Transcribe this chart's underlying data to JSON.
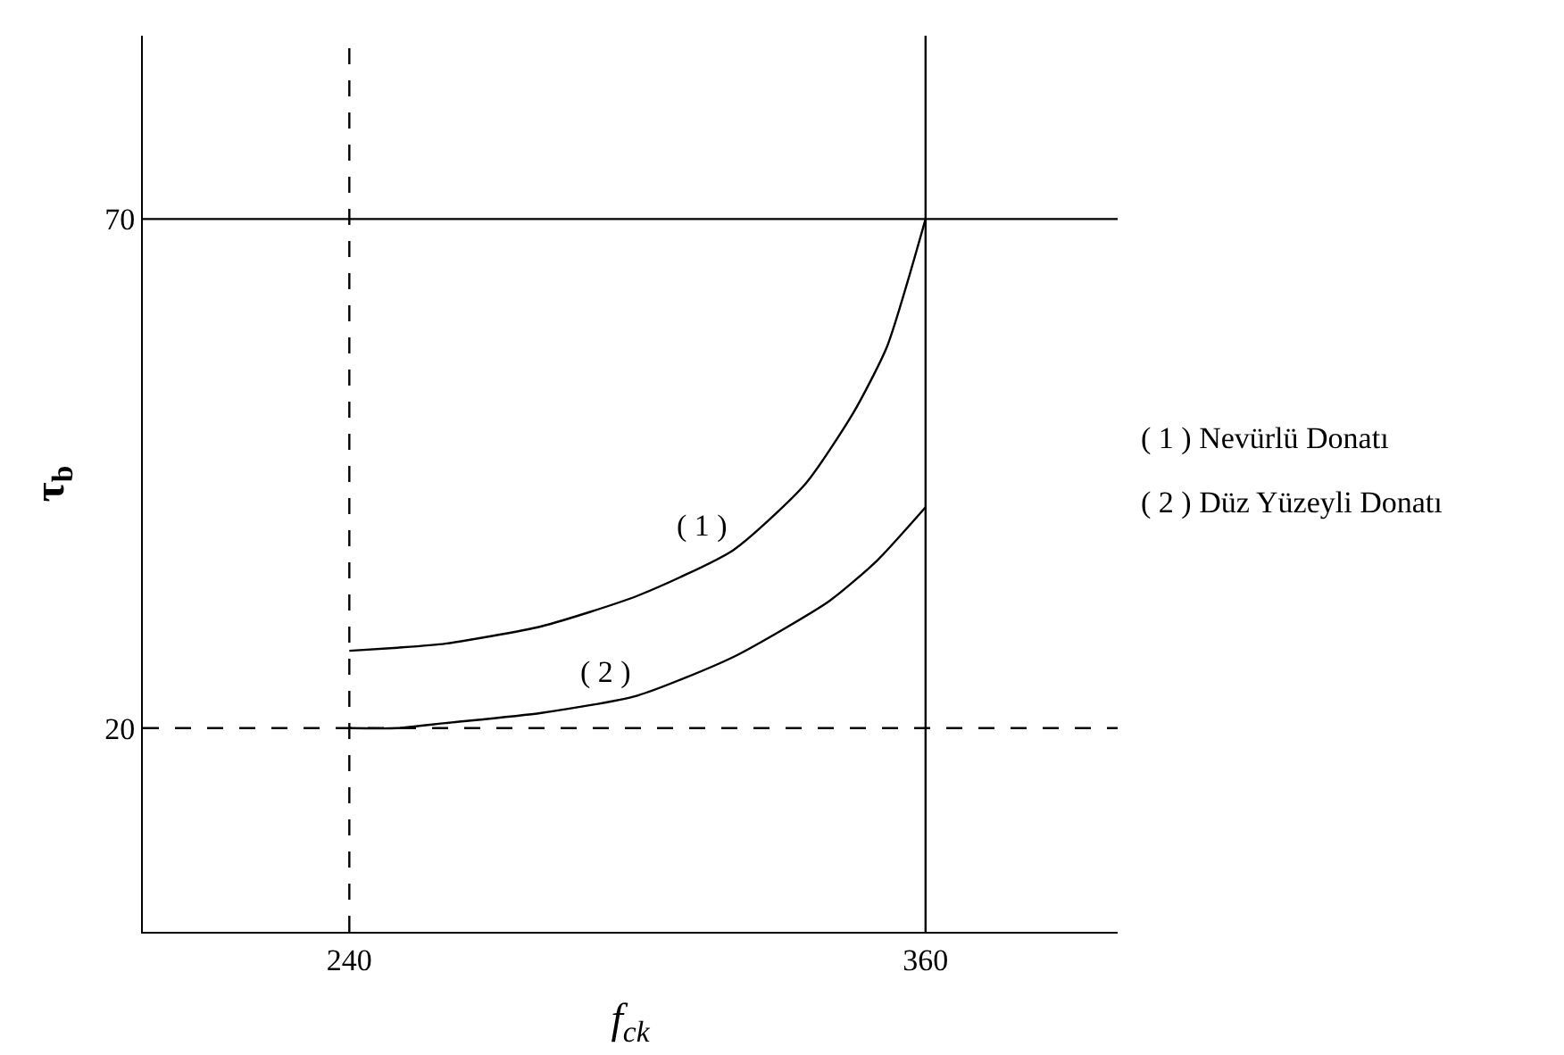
{
  "chart_data": {
    "type": "line",
    "xlabel": "f$_{ck}$",
    "ylabel": "τ$_{b}$",
    "series": [
      {
        "name": "( 1 )",
        "color": "#000000",
        "x": [
          240,
          250,
          260,
          280,
          300,
          320,
          335,
          345,
          352,
          360
        ],
        "values": [
          27.6,
          27.9,
          28.3,
          30,
          33,
          37.5,
          44,
          51,
          57.5,
          70
        ]
      },
      {
        "name": "( 2 )",
        "color": "#000000",
        "x": [
          240,
          250,
          260,
          280,
          300,
          320,
          340,
          350,
          360
        ],
        "values": [
          20,
          20,
          20.5,
          21.5,
          23.2,
          27,
          32.5,
          36.5,
          41.7
        ]
      }
    ],
    "xlim": [
      197,
      400
    ],
    "ylim": [
      0,
      88
    ],
    "xticks": [
      240,
      360
    ],
    "yticks": [
      20,
      70
    ],
    "ref_lines": [
      {
        "axis": "x",
        "value": 240,
        "line_style": "dashed",
        "color": "#000000"
      },
      {
        "axis": "y",
        "value": 20,
        "line_style": "dashed",
        "color": "#000000"
      },
      {
        "axis": "x",
        "value": 360,
        "line_style": "solid",
        "color": "#000000"
      },
      {
        "axis": "y",
        "value": 70,
        "line_style": "solid",
        "color": "#000000"
      }
    ],
    "annotations": [
      "( 1 ) Nevürlü Donatı",
      "( 2 ) Düz Yüzeyli Donatı"
    ],
    "legend": false,
    "marker": "none",
    "line_style": "solid"
  }
}
